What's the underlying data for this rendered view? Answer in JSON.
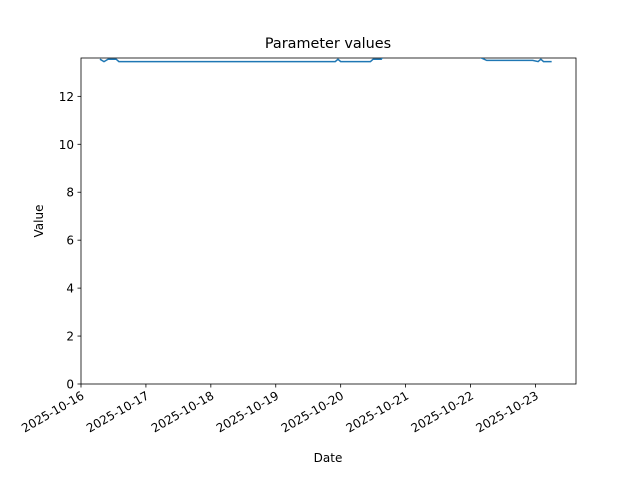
{
  "chart_data": {
    "type": "line",
    "title": "Parameter values",
    "x_label": "Date",
    "y_label": "Value",
    "x": [
      "2025-10-16T07:00",
      "2025-10-16T08:30",
      "2025-10-16T10:00",
      "2025-10-16T13:00",
      "2025-10-16T14:00",
      "2025-10-19T22:00",
      "2025-10-19T23:00",
      "2025-10-20T00:00",
      "2025-10-20T11:00",
      "2025-10-20T12:00",
      "2025-10-20T15:00",
      "2025-10-20T16:00",
      "2025-10-22T03:00",
      "2025-10-22T04:00",
      "2025-10-22T06:00",
      "2025-10-22T23:00",
      "2025-10-23T01:00",
      "2025-10-23T02:00",
      "2025-10-23T03:00",
      "2025-10-23T06:00"
    ],
    "series": [
      {
        "name": "Value",
        "color": "#1f77b4",
        "values": [
          13.55,
          13.45,
          13.55,
          13.55,
          13.45,
          13.45,
          13.55,
          13.45,
          13.45,
          13.55,
          13.55,
          13.7,
          13.7,
          13.6,
          13.5,
          13.5,
          13.45,
          13.55,
          13.45,
          13.45
        ]
      }
    ],
    "xlim": [
      "2025-10-16T00:00",
      "2025-10-23T15:00"
    ],
    "xticks": [
      "2025-10-16",
      "2025-10-17",
      "2025-10-18",
      "2025-10-19",
      "2025-10-20",
      "2025-10-21",
      "2025-10-22",
      "2025-10-23"
    ],
    "ylim": [
      0,
      13.6
    ],
    "yticks": [
      0,
      2,
      4,
      6,
      8,
      10,
      12
    ],
    "grid": false
  }
}
